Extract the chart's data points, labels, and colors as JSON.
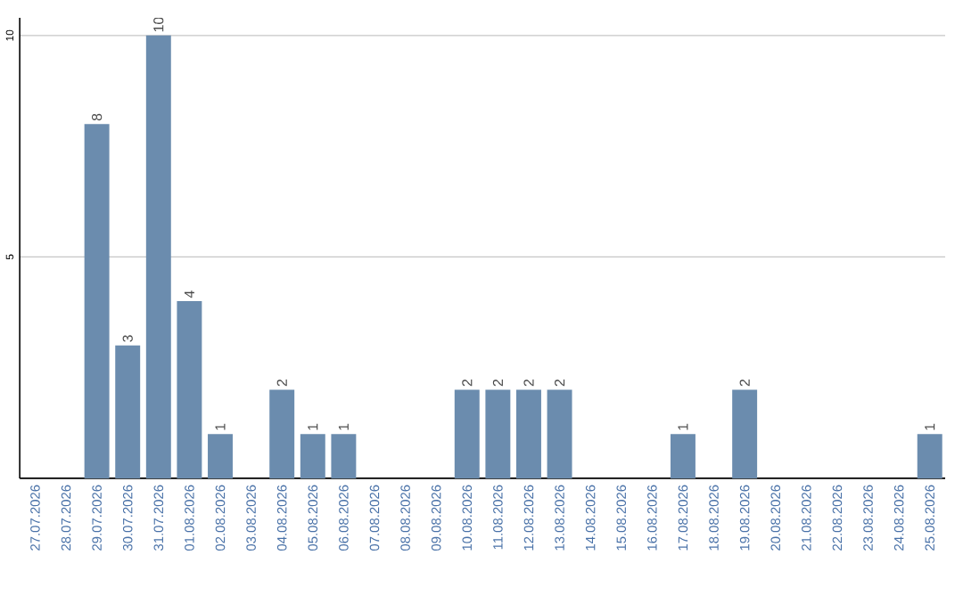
{
  "chart_data": {
    "type": "bar",
    "categories": [
      "27.07.2026",
      "28.07.2026",
      "29.07.2026",
      "30.07.2026",
      "31.07.2026",
      "01.08.2026",
      "02.08.2026",
      "03.08.2026",
      "04.08.2026",
      "05.08.2026",
      "06.08.2026",
      "07.08.2026",
      "08.08.2026",
      "09.08.2026",
      "10.08.2026",
      "11.08.2026",
      "12.08.2026",
      "13.08.2026",
      "14.08.2026",
      "15.08.2026",
      "16.08.2026",
      "17.08.2026",
      "18.08.2026",
      "19.08.2026",
      "20.08.2026",
      "21.08.2026",
      "22.08.2026",
      "23.08.2026",
      "24.08.2026",
      "25.08.2026"
    ],
    "values": [
      0,
      0,
      8,
      3,
      10,
      4,
      1,
      0,
      2,
      1,
      1,
      0,
      0,
      0,
      2,
      2,
      2,
      2,
      0,
      0,
      0,
      1,
      0,
      2,
      0,
      0,
      0,
      0,
      0,
      1
    ],
    "value_labels": [
      null,
      null,
      "8",
      "3",
      "10",
      "4",
      "1",
      null,
      "2",
      "1",
      "1",
      null,
      null,
      null,
      "2",
      "2",
      "2",
      "2",
      null,
      null,
      null,
      "1",
      null,
      "2",
      null,
      null,
      null,
      null,
      null,
      "1"
    ],
    "color": "#6b8cae",
    "ylim": [
      0,
      10.4
    ],
    "yticks": [
      5,
      10
    ],
    "grid": "y"
  }
}
